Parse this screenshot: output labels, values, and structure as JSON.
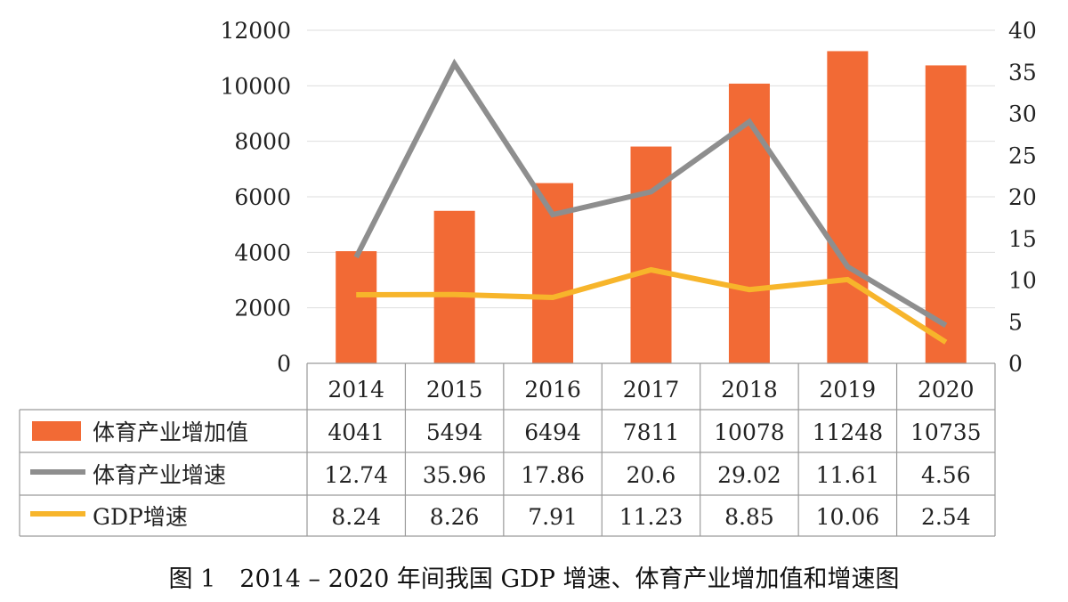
{
  "caption": "图 1　2014 – 2020 年间我国 GDP 增速、体育产业增加值和增速图",
  "chart_data": {
    "type": "bar",
    "categories": [
      "2014",
      "2015",
      "2016",
      "2017",
      "2018",
      "2019",
      "2020"
    ],
    "y_left": {
      "ylim": [
        0,
        12000
      ],
      "ticks": [
        "0",
        "2000",
        "4000",
        "6000",
        "8000",
        "10000",
        "12000"
      ]
    },
    "y_right": {
      "ylim": [
        0,
        40
      ],
      "ticks": [
        "0",
        "5",
        "10",
        "15",
        "20",
        "25",
        "30",
        "35",
        "40"
      ]
    },
    "series": [
      {
        "name": "体育产业增加值",
        "type": "bar",
        "axis": "left",
        "color": "#F26A35",
        "values": [
          4041,
          5494,
          6494,
          7811,
          10078,
          11248,
          10735
        ],
        "labels": [
          "4041",
          "5494",
          "6494",
          "7811",
          "10078",
          "11248",
          "10735"
        ]
      },
      {
        "name": "体育产业增速",
        "type": "line",
        "axis": "right",
        "color": "#8E8E8E",
        "values": [
          12.74,
          35.96,
          17.86,
          20.6,
          29.02,
          11.61,
          4.56
        ],
        "labels": [
          "12.74",
          "35.96",
          "17.86",
          "20.6",
          "29.02",
          "11.61",
          "4.56"
        ]
      },
      {
        "name": "GDP增速",
        "type": "line",
        "axis": "right",
        "color": "#F7B52B",
        "values": [
          8.24,
          8.26,
          7.91,
          11.23,
          8.85,
          10.06,
          2.54
        ],
        "labels": [
          "8.24",
          "8.26",
          "7.91",
          "11.23",
          "8.85",
          "10.06",
          "2.54"
        ]
      }
    ],
    "data_table": true,
    "grid": true
  }
}
